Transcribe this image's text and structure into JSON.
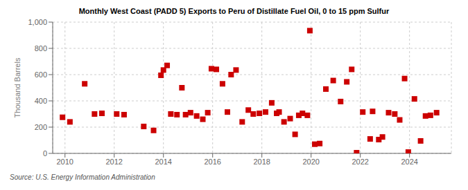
{
  "chart_data": {
    "type": "scatter",
    "title": "Monthly West Coast (PADD 5) Exports to Peru of Distillate Fuel Oil, 0 to 15 ppm Sulfur",
    "ylabel": "Thousand Barrels",
    "source": "Source: U.S. Energy Information Administration",
    "color": "#cc0000",
    "marker": "square",
    "grid": true,
    "xlim": [
      2009.5,
      2025.7
    ],
    "xticks": [
      2010,
      2012,
      2014,
      2016,
      2018,
      2020,
      2022,
      2024
    ],
    "ylim": [
      0,
      1000
    ],
    "yticks": [
      0,
      200,
      400,
      600,
      800,
      {
        "value": 1000,
        "label": "1,000"
      }
    ],
    "x": [
      2009.9,
      2010.2,
      2010.8,
      2011.2,
      2011.5,
      2012.1,
      2012.4,
      2013.2,
      2013.6,
      2013.9,
      2014.0,
      2014.15,
      2014.3,
      2014.55,
      2014.75,
      2014.9,
      2015.1,
      2015.35,
      2015.6,
      2015.8,
      2015.95,
      2016.15,
      2016.4,
      2016.6,
      2016.75,
      2016.95,
      2017.2,
      2017.45,
      2017.65,
      2017.9,
      2018.15,
      2018.4,
      2018.6,
      2018.7,
      2018.9,
      2019.15,
      2019.35,
      2019.5,
      2019.65,
      2019.85,
      2019.95,
      2020.15,
      2020.35,
      2020.6,
      2020.9,
      2021.2,
      2021.45,
      2021.65,
      2021.85,
      2022.1,
      2022.4,
      2022.5,
      2022.75,
      2022.9,
      2023.15,
      2023.4,
      2023.6,
      2023.8,
      2023.95,
      2024.2,
      2024.45,
      2024.65,
      2024.85,
      2025.1
    ],
    "values": [
      275,
      240,
      530,
      300,
      305,
      300,
      295,
      205,
      175,
      595,
      635,
      670,
      300,
      295,
      500,
      295,
      310,
      285,
      260,
      310,
      645,
      640,
      530,
      315,
      600,
      635,
      240,
      330,
      300,
      305,
      315,
      385,
      305,
      315,
      240,
      265,
      145,
      290,
      305,
      290,
      935,
      70,
      75,
      490,
      555,
      395,
      545,
      640,
      5,
      315,
      110,
      320,
      105,
      125,
      310,
      300,
      255,
      570,
      10,
      415,
      95,
      285,
      290,
      310
    ]
  }
}
